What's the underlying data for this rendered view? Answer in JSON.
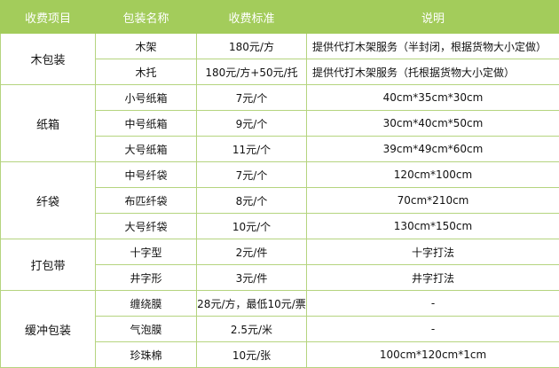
{
  "colors": {
    "header_bg": "#a3cc5b",
    "border": "#b5d47f"
  },
  "headers": [
    "收费项目",
    "包装名称",
    "收费标准",
    "说明"
  ],
  "groups": [
    {
      "category": "木包装",
      "rows": [
        {
          "name": "木架",
          "price": "180元/方",
          "note": "提供代打木架服务（半封闭，根据货物大小定做）",
          "align": "left"
        },
        {
          "name": "木托",
          "price": "180元/方+50元/托",
          "note": "提供代打木架服务（托根据货物大小定做）",
          "align": "left"
        }
      ]
    },
    {
      "category": "纸箱",
      "rows": [
        {
          "name": "小号纸箱",
          "price": "7元/个",
          "note": "40cm*35cm*30cm"
        },
        {
          "name": "中号纸箱",
          "price": "9元/个",
          "note": "30cm*40cm*50cm"
        },
        {
          "name": "大号纸箱",
          "price": "11元/个",
          "note": "39cm*49cm*60cm"
        }
      ]
    },
    {
      "category": "纤袋",
      "rows": [
        {
          "name": "中号纤袋",
          "price": "7元/个",
          "note": "120cm*100cm"
        },
        {
          "name": "布匹纤袋",
          "price": "8元/个",
          "note": "70cm*210cm"
        },
        {
          "name": "大号纤袋",
          "price": "10元/个",
          "note": "130cm*150cm"
        }
      ]
    },
    {
      "category": "打包带",
      "rows": [
        {
          "name": "十字型",
          "price": "2元/件",
          "note": "十字打法"
        },
        {
          "name": "井字形",
          "price": "3元/件",
          "note": "井字打法"
        }
      ]
    },
    {
      "category": "缓冲包装",
      "rows": [
        {
          "name": "缠绕膜",
          "price": "28元/方，最低10元/票",
          "note": "-"
        },
        {
          "name": "气泡膜",
          "price": "2.5元/米",
          "note": "-"
        },
        {
          "name": "珍珠棉",
          "price": "10元/张",
          "note": "100cm*120cm*1cm"
        }
      ]
    }
  ]
}
